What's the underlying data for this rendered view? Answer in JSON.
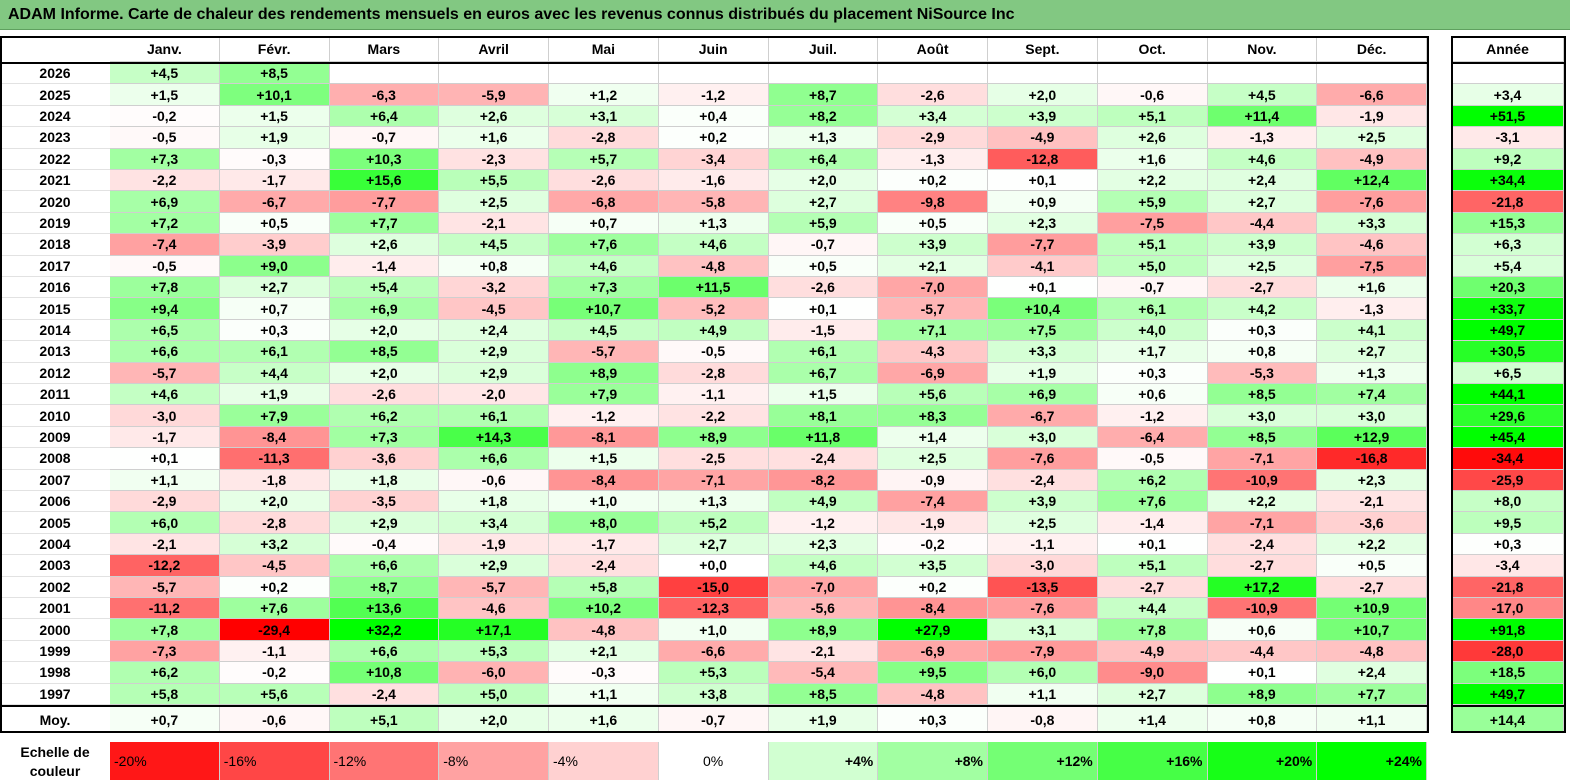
{
  "title": "ADAM Informe. Carte de chaleur des rendements mensuels en euros avec les revenus connus distribués du placement NiSource Inc",
  "chart_data": {
    "type": "heatmap",
    "months": [
      "Janv.",
      "Févr.",
      "Mars",
      "Avril",
      "Mai",
      "Juin",
      "Juil.",
      "Août",
      "Sept.",
      "Oct.",
      "Nov.",
      "Déc."
    ],
    "year_header": "Année",
    "rows": [
      {
        "year": "2026",
        "values": [
          "+4,5",
          "+8,5",
          "",
          "",
          "",
          "",
          "",
          "",
          "",
          "",
          "",
          ""
        ],
        "annual": ""
      },
      {
        "year": "2025",
        "values": [
          "+1,5",
          "+10,1",
          "-6,3",
          "-5,9",
          "+1,2",
          "-1,2",
          "+8,7",
          "-2,6",
          "+2,0",
          "-0,6",
          "+4,5",
          "-6,6"
        ],
        "annual": "+3,4"
      },
      {
        "year": "2024",
        "values": [
          "-0,2",
          "+1,5",
          "+6,4",
          "+2,6",
          "+3,1",
          "+0,4",
          "+8,2",
          "+3,4",
          "+3,9",
          "+5,1",
          "+11,4",
          "-1,9"
        ],
        "annual": "+51,5"
      },
      {
        "year": "2023",
        "values": [
          "-0,5",
          "+1,9",
          "-0,7",
          "+1,6",
          "-2,8",
          "+0,2",
          "+1,3",
          "-2,9",
          "-4,9",
          "+2,6",
          "-1,3",
          "+2,5"
        ],
        "annual": "-3,1"
      },
      {
        "year": "2022",
        "values": [
          "+7,3",
          "-0,3",
          "+10,3",
          "-2,3",
          "+5,7",
          "-3,4",
          "+6,4",
          "-1,3",
          "-12,8",
          "+1,6",
          "+4,6",
          "-4,9"
        ],
        "annual": "+9,2"
      },
      {
        "year": "2021",
        "values": [
          "-2,2",
          "-1,7",
          "+15,6",
          "+5,5",
          "-2,6",
          "-1,6",
          "+2,0",
          "+0,2",
          "+0,1",
          "+2,2",
          "+2,4",
          "+12,4"
        ],
        "annual": "+34,4"
      },
      {
        "year": "2020",
        "values": [
          "+6,9",
          "-6,7",
          "-7,7",
          "+2,5",
          "-6,8",
          "-5,8",
          "+2,7",
          "-9,8",
          "+0,9",
          "+5,9",
          "+2,7",
          "-7,6"
        ],
        "annual": "-21,8"
      },
      {
        "year": "2019",
        "values": [
          "+7,2",
          "+0,5",
          "+7,7",
          "-2,1",
          "+0,7",
          "+1,3",
          "+5,9",
          "+0,5",
          "+2,3",
          "-7,5",
          "-4,4",
          "+3,3"
        ],
        "annual": "+15,3"
      },
      {
        "year": "2018",
        "values": [
          "-7,4",
          "-3,9",
          "+2,6",
          "+4,5",
          "+7,6",
          "+4,6",
          "-0,7",
          "+3,9",
          "-7,7",
          "+5,1",
          "+3,9",
          "-4,6"
        ],
        "annual": "+6,3"
      },
      {
        "year": "2017",
        "values": [
          "-0,5",
          "+9,0",
          "-1,4",
          "+0,8",
          "+4,6",
          "-4,8",
          "+0,5",
          "+2,1",
          "-4,1",
          "+5,0",
          "+2,5",
          "-7,5"
        ],
        "annual": "+5,4"
      },
      {
        "year": "2016",
        "values": [
          "+7,8",
          "+2,7",
          "+5,4",
          "-3,2",
          "+7,3",
          "+11,5",
          "-2,6",
          "-7,0",
          "+0,1",
          "-0,7",
          "-2,7",
          "+1,6"
        ],
        "annual": "+20,3"
      },
      {
        "year": "2015",
        "values": [
          "+9,4",
          "+0,7",
          "+6,9",
          "-4,5",
          "+10,7",
          "-5,2",
          "+0,1",
          "-5,7",
          "+10,4",
          "+6,1",
          "+4,2",
          "-1,3"
        ],
        "annual": "+33,7"
      },
      {
        "year": "2014",
        "values": [
          "+6,5",
          "+0,3",
          "+2,0",
          "+2,4",
          "+4,5",
          "+4,9",
          "-1,5",
          "+7,1",
          "+7,5",
          "+4,0",
          "+0,3",
          "+4,1"
        ],
        "annual": "+49,7"
      },
      {
        "year": "2013",
        "values": [
          "+6,6",
          "+6,1",
          "+8,5",
          "+2,9",
          "-5,7",
          "-0,5",
          "+6,1",
          "-4,3",
          "+3,3",
          "+1,7",
          "+0,8",
          "+2,7"
        ],
        "annual": "+30,5"
      },
      {
        "year": "2012",
        "values": [
          "-5,7",
          "+4,4",
          "+2,0",
          "+2,9",
          "+8,9",
          "-2,8",
          "+6,7",
          "-6,9",
          "+1,9",
          "+0,3",
          "-5,3",
          "+1,3"
        ],
        "annual": "+6,5"
      },
      {
        "year": "2011",
        "values": [
          "+4,6",
          "+1,9",
          "-2,6",
          "-2,0",
          "+7,9",
          "-1,1",
          "+1,5",
          "+5,6",
          "+6,9",
          "+0,6",
          "+8,5",
          "+7,4"
        ],
        "annual": "+44,1"
      },
      {
        "year": "2010",
        "values": [
          "-3,0",
          "+7,9",
          "+6,2",
          "+6,1",
          "-1,2",
          "-2,2",
          "+8,1",
          "+8,3",
          "-6,7",
          "-1,2",
          "+3,0",
          "+3,0"
        ],
        "annual": "+29,6"
      },
      {
        "year": "2009",
        "values": [
          "-1,7",
          "-8,4",
          "+7,3",
          "+14,3",
          "-8,1",
          "+8,9",
          "+11,8",
          "+1,4",
          "+3,0",
          "-6,4",
          "+8,5",
          "+12,9"
        ],
        "annual": "+45,4"
      },
      {
        "year": "2008",
        "values": [
          "+0,1",
          "-11,3",
          "-3,6",
          "+6,6",
          "+1,5",
          "-2,5",
          "-2,4",
          "+2,5",
          "-7,6",
          "-0,5",
          "-7,1",
          "-16,8"
        ],
        "annual": "-34,4"
      },
      {
        "year": "2007",
        "values": [
          "+1,1",
          "-1,8",
          "+1,8",
          "-0,6",
          "-8,4",
          "-7,1",
          "-8,2",
          "-0,9",
          "-2,4",
          "+6,2",
          "-10,9",
          "+2,3"
        ],
        "annual": "-25,9"
      },
      {
        "year": "2006",
        "values": [
          "-2,9",
          "+2,0",
          "-3,5",
          "+1,8",
          "+1,0",
          "+1,3",
          "+4,9",
          "-7,4",
          "+3,9",
          "+7,6",
          "+2,2",
          "-2,1"
        ],
        "annual": "+8,0"
      },
      {
        "year": "2005",
        "values": [
          "+6,0",
          "-2,8",
          "+2,9",
          "+3,4",
          "+8,0",
          "+5,2",
          "-1,2",
          "-1,9",
          "+2,5",
          "-1,4",
          "-7,1",
          "-3,6"
        ],
        "annual": "+9,5"
      },
      {
        "year": "2004",
        "values": [
          "-2,1",
          "+3,2",
          "-0,4",
          "-1,9",
          "-1,7",
          "+2,7",
          "+2,3",
          "-0,2",
          "-1,1",
          "+0,1",
          "-2,4",
          "+2,2"
        ],
        "annual": "+0,3"
      },
      {
        "year": "2003",
        "values": [
          "-12,2",
          "-4,5",
          "+6,6",
          "+2,9",
          "-2,4",
          "+0,0",
          "+4,6",
          "+3,5",
          "-3,0",
          "+5,1",
          "-2,7",
          "+0,5"
        ],
        "annual": "-3,4"
      },
      {
        "year": "2002",
        "values": [
          "-5,7",
          "+0,2",
          "+8,7",
          "-5,7",
          "+5,8",
          "-15,0",
          "-7,0",
          "+0,2",
          "-13,5",
          "-2,7",
          "+17,2",
          "-2,7"
        ],
        "annual": "-21,8"
      },
      {
        "year": "2001",
        "values": [
          "-11,2",
          "+7,6",
          "+13,6",
          "-4,6",
          "+10,2",
          "-12,3",
          "-5,6",
          "-8,4",
          "-7,6",
          "+4,4",
          "-10,9",
          "+10,9"
        ],
        "annual": "-17,0"
      },
      {
        "year": "2000",
        "values": [
          "+7,8",
          "-29,4",
          "+32,2",
          "+17,1",
          "-4,8",
          "+1,0",
          "+8,9",
          "+27,9",
          "+3,1",
          "+7,8",
          "+0,6",
          "+10,7"
        ],
        "annual": "+91,8"
      },
      {
        "year": "1999",
        "values": [
          "-7,3",
          "-1,1",
          "+6,6",
          "+5,3",
          "+2,1",
          "-6,6",
          "-2,1",
          "-6,9",
          "-7,9",
          "-4,9",
          "-4,4",
          "-4,8"
        ],
        "annual": "-28,0"
      },
      {
        "year": "1998",
        "values": [
          "+6,2",
          "-0,2",
          "+10,8",
          "-6,0",
          "-0,3",
          "+5,3",
          "-5,4",
          "+9,5",
          "+6,0",
          "-9,0",
          "+0,1",
          "+2,4"
        ],
        "annual": "+18,5"
      },
      {
        "year": "1997",
        "values": [
          "+5,8",
          "+5,6",
          "-2,4",
          "+5,0",
          "+1,1",
          "+3,8",
          "+8,5",
          "-4,8",
          "+1,1",
          "+2,7",
          "+8,9",
          "+7,7"
        ],
        "annual": "+49,7"
      }
    ],
    "average": {
      "label": "Moy.",
      "values": [
        "+0,7",
        "-0,6",
        "+5,1",
        "+2,0",
        "+1,6",
        "-0,7",
        "+1,9",
        "+0,3",
        "-0,8",
        "+1,4",
        "+0,8",
        "+1,1"
      ],
      "annual": "+14,4"
    },
    "color_scale": {
      "label": "Echelle de couleur",
      "steps": [
        "-20%",
        "-16%",
        "-12%",
        "-8%",
        "-4%",
        "0%",
        "+4%",
        "+8%",
        "+12%",
        "+16%",
        "+20%",
        "+24%"
      ]
    }
  }
}
